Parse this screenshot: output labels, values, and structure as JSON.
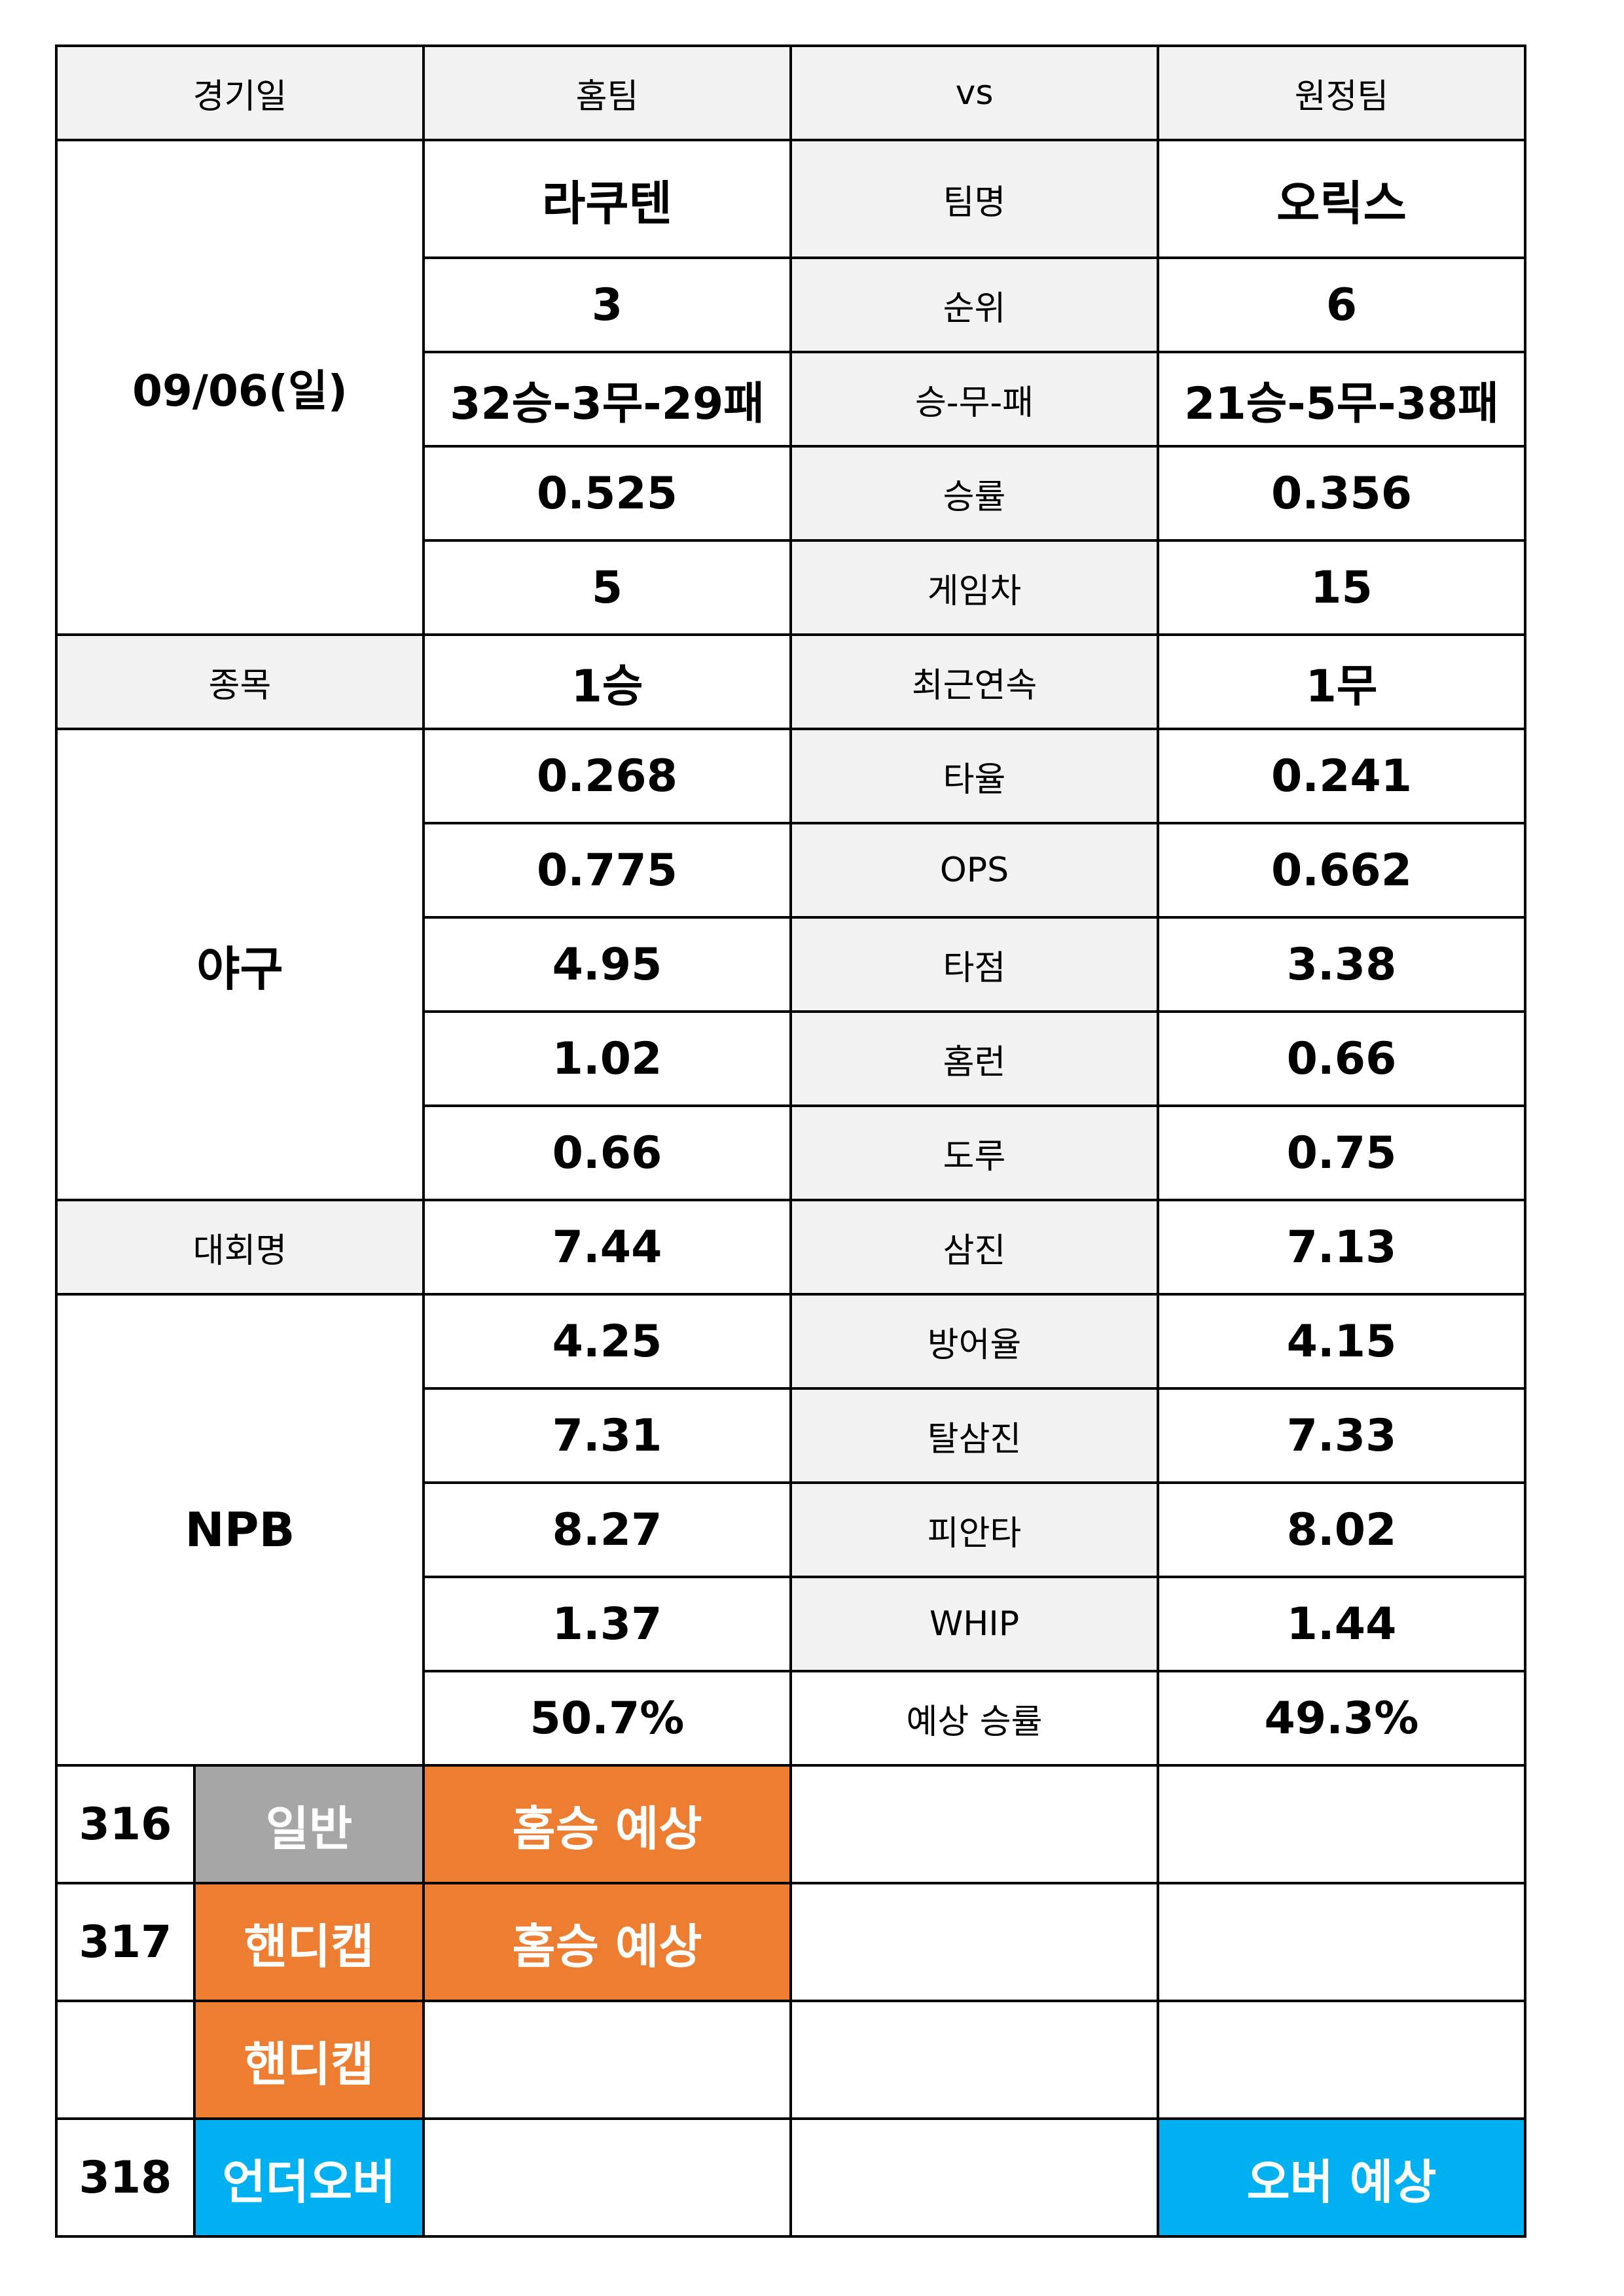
{
  "header": {
    "date_col": "경기일",
    "home_col": "홈팀",
    "vs_col": "vs",
    "away_col": "원정팀"
  },
  "left": {
    "date": "09/06(일)",
    "sport_label": "종목",
    "sport": "야구",
    "league_label": "대회명",
    "league": "NPB"
  },
  "stats": [
    {
      "label": "팀명",
      "home": "라쿠텐",
      "away": "오릭스"
    },
    {
      "label": "순위",
      "home": "3",
      "away": "6"
    },
    {
      "label": "승-무-패",
      "home": "32승-3무-29패",
      "away": "21승-5무-38패"
    },
    {
      "label": "승률",
      "home": "0.525",
      "away": "0.356"
    },
    {
      "label": "게임차",
      "home": "5",
      "away": "15"
    },
    {
      "label": "최근연속",
      "home": "1승",
      "away": "1무"
    },
    {
      "label": "타율",
      "home": "0.268",
      "away": "0.241"
    },
    {
      "label": "OPS",
      "home": "0.775",
      "away": "0.662"
    },
    {
      "label": "타점",
      "home": "4.95",
      "away": "3.38"
    },
    {
      "label": "홈런",
      "home": "1.02",
      "away": "0.66"
    },
    {
      "label": "도루",
      "home": "0.66",
      "away": "0.75"
    },
    {
      "label": "삼진",
      "home": "7.44",
      "away": "7.13"
    },
    {
      "label": "방어율",
      "home": "4.25",
      "away": "4.15"
    },
    {
      "label": "탈삼진",
      "home": "7.31",
      "away": "7.33"
    },
    {
      "label": "피안타",
      "home": "8.27",
      "away": "8.02"
    },
    {
      "label": "WHIP",
      "home": "1.37",
      "away": "1.44"
    },
    {
      "label": "예상 승률",
      "home": "50.7%",
      "away": "49.3%"
    }
  ],
  "picks": [
    {
      "num": "316",
      "type": "일반",
      "home": "홈승 예상",
      "mid": "",
      "away": ""
    },
    {
      "num": "317",
      "type": "핸디캡",
      "home": "홈승 예상",
      "mid": "",
      "away": ""
    },
    {
      "num": "",
      "type": "핸디캡",
      "home": "",
      "mid": "",
      "away": ""
    },
    {
      "num": "318",
      "type": "언더오버",
      "home": "",
      "mid": "",
      "away": "오버 예상"
    }
  ],
  "colors": {
    "gray": "#a6a6a6",
    "orange": "#ed7d31",
    "blue": "#00b0f0",
    "label_bg": "#f2f2f2"
  }
}
